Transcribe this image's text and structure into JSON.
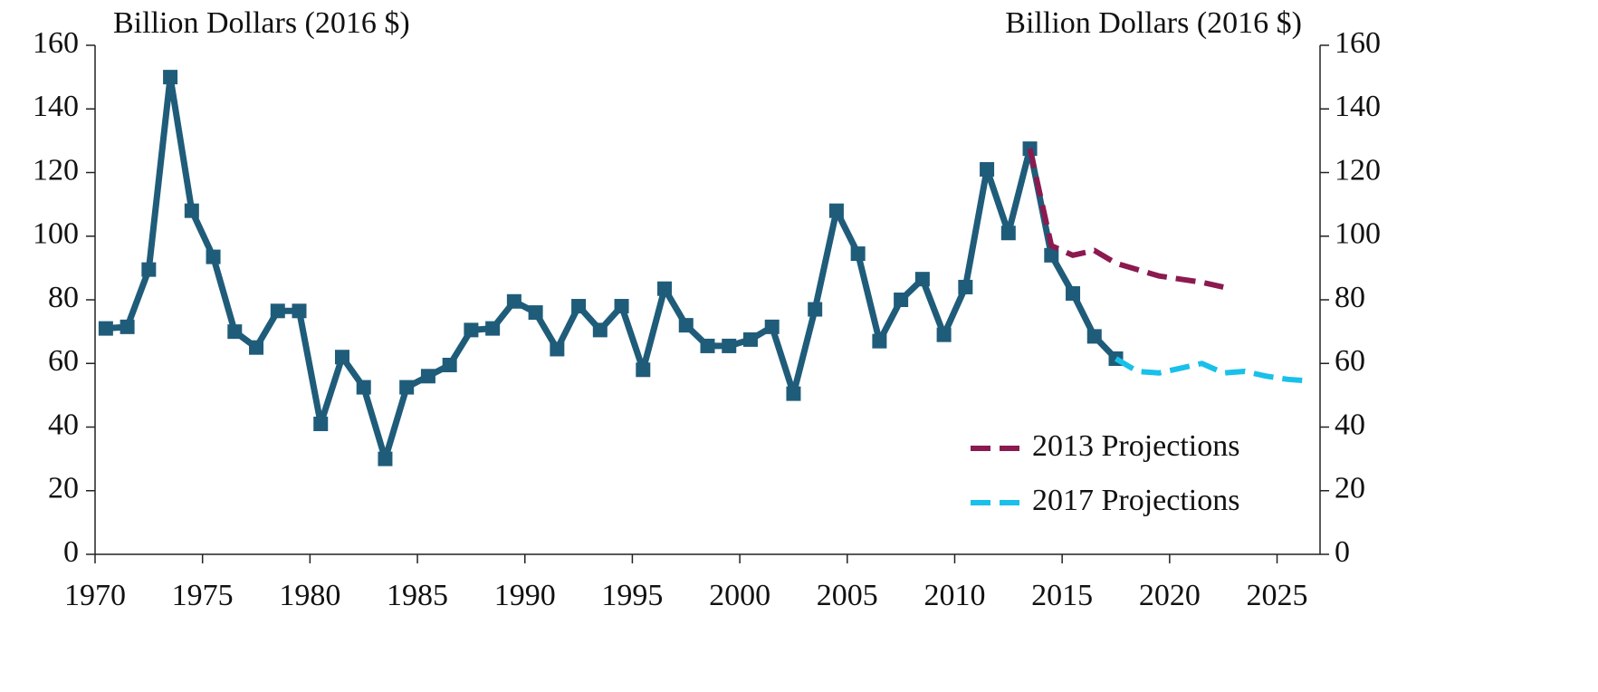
{
  "chart_data": {
    "type": "line",
    "y_label": "Billion Dollars (2016 $)",
    "y2_label": "Billion Dollars (2016 $)",
    "xlim": [
      1970,
      2027
    ],
    "xticks": [
      1970,
      1975,
      1980,
      1985,
      1990,
      1995,
      2000,
      2005,
      2010,
      2015,
      2020,
      2025
    ],
    "ylim": [
      0,
      160
    ],
    "yticks": [
      0,
      20,
      40,
      60,
      80,
      100,
      120,
      140,
      160
    ],
    "y2lim": [
      0,
      160
    ],
    "y2ticks": [
      0,
      20,
      40,
      60,
      80,
      100,
      120,
      140,
      160
    ],
    "legend": "lower right",
    "series": [
      {
        "color": "#1f5c7a",
        "style": "solid",
        "marker": "square",
        "x": [
          1970.5,
          1971.5,
          1972.5,
          1973.5,
          1974.5,
          1975.5,
          1976.5,
          1977.5,
          1978.5,
          1979.5,
          1980.5,
          1981.5,
          1982.5,
          1983.5,
          1984.5,
          1985.5,
          1986.5,
          1987.5,
          1988.5,
          1989.5,
          1990.5,
          1991.5,
          1992.5,
          1993.5,
          1994.5,
          1995.5,
          1996.5,
          1997.5,
          1998.5,
          1999.5,
          2000.5,
          2001.5,
          2002.5,
          2003.5,
          2004.5,
          2005.5,
          2006.5,
          2007.5,
          2008.5,
          2009.5,
          2010.5,
          2011.5,
          2012.5,
          2013.5,
          2014.5,
          2015.5,
          2016.5,
          2017.5
        ],
        "values": [
          71,
          71.5,
          89.5,
          150,
          108,
          93.5,
          70,
          65,
          76.5,
          76.5,
          41,
          62,
          52.5,
          30,
          52.5,
          56,
          59.5,
          70.5,
          71,
          79.5,
          76,
          64.5,
          78,
          70.5,
          78,
          58,
          83.5,
          72,
          65.5,
          65.5,
          67.5,
          71.5,
          50.5,
          77,
          108,
          94.5,
          67,
          80,
          86.5,
          69,
          84,
          121,
          101,
          127.5,
          94,
          82,
          68.5,
          61.5
        ]
      },
      {
        "name": "2013 Projections",
        "color": "#8b1a4f",
        "style": "dashed",
        "x": [
          2013.5,
          2014.5,
          2015.5,
          2016.5,
          2017.5,
          2018.5,
          2019.5,
          2020.5,
          2021.5,
          2022.5
        ],
        "values": [
          127.5,
          97,
          94,
          95.5,
          91.5,
          89.5,
          87.5,
          86.5,
          85.5,
          84
        ]
      },
      {
        "name": "2017 Projections",
        "color": "#19c0ea",
        "style": "dashed",
        "x": [
          2017.5,
          2018.5,
          2019.5,
          2020.5,
          2021.5,
          2022.5,
          2023.5,
          2024.5,
          2025.5,
          2026.5
        ],
        "values": [
          61.5,
          57.5,
          57,
          58.5,
          60,
          57,
          57.5,
          56,
          55,
          54.5
        ]
      }
    ]
  }
}
